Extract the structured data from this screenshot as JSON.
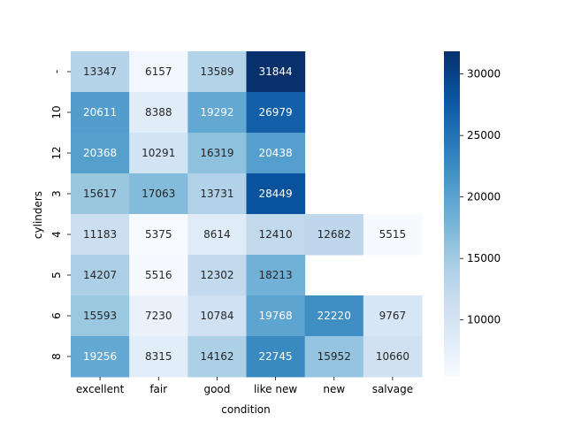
{
  "chart_data": {
    "type": "heatmap",
    "title": "",
    "xlabel": "condition",
    "ylabel": "cylinders",
    "x_categories": [
      "excellent",
      "fair",
      "good",
      "like new",
      "new",
      "salvage"
    ],
    "y_categories": [
      "-",
      "10",
      "12",
      "3",
      "4",
      "5",
      "6",
      "8"
    ],
    "values": [
      [
        13347,
        6157,
        13589,
        31844,
        null,
        null
      ],
      [
        20611,
        8388,
        19292,
        26979,
        null,
        null
      ],
      [
        20368,
        10291,
        16319,
        20438,
        null,
        null
      ],
      [
        15617,
        17063,
        13731,
        28449,
        null,
        null
      ],
      [
        11183,
        5375,
        8614,
        12410,
        12682,
        5515
      ],
      [
        14207,
        5516,
        12302,
        18213,
        null,
        null
      ],
      [
        15593,
        7230,
        10784,
        19768,
        22220,
        9767
      ],
      [
        19256,
        8315,
        14162,
        22745,
        15952,
        10660
      ]
    ],
    "colormap": "Blues",
    "vmin": 5375,
    "vmax": 31844,
    "annotation_threshold": 18610,
    "colorbar_ticks": [
      10000,
      15000,
      20000,
      25000,
      30000
    ],
    "colorbar_tick_labels": [
      "10000",
      "15000",
      "20000",
      "25000",
      "30000"
    ]
  }
}
